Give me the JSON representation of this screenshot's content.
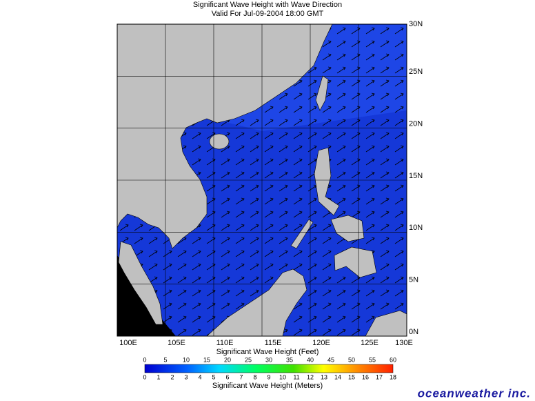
{
  "header": {
    "title": "Significant Wave Height with Wave Direction",
    "subtitle": "Valid For Jul-09-2004 18:00 GMT"
  },
  "map": {
    "lon_labels": [
      "100E",
      "105E",
      "110E",
      "115E",
      "120E",
      "125E",
      "130E"
    ],
    "lat_labels": [
      "30N",
      "25N",
      "20N",
      "15N",
      "10N",
      "5N",
      "0N"
    ]
  },
  "colorbar": {
    "feet_title": "Significant Wave Height (Feet)",
    "feet_ticks": [
      "0",
      "5",
      "10",
      "15",
      "20",
      "25",
      "30",
      "35",
      "40",
      "45",
      "50",
      "55",
      "60"
    ],
    "meters_title": "Significant Wave Height (Meters)",
    "meters_ticks": [
      "0",
      "1",
      "2",
      "3",
      "4",
      "5",
      "6",
      "7",
      "8",
      "9",
      "10",
      "11",
      "12",
      "13",
      "14",
      "15",
      "16",
      "17",
      "18"
    ]
  },
  "footer": {
    "logo": "oceanweather inc."
  }
}
